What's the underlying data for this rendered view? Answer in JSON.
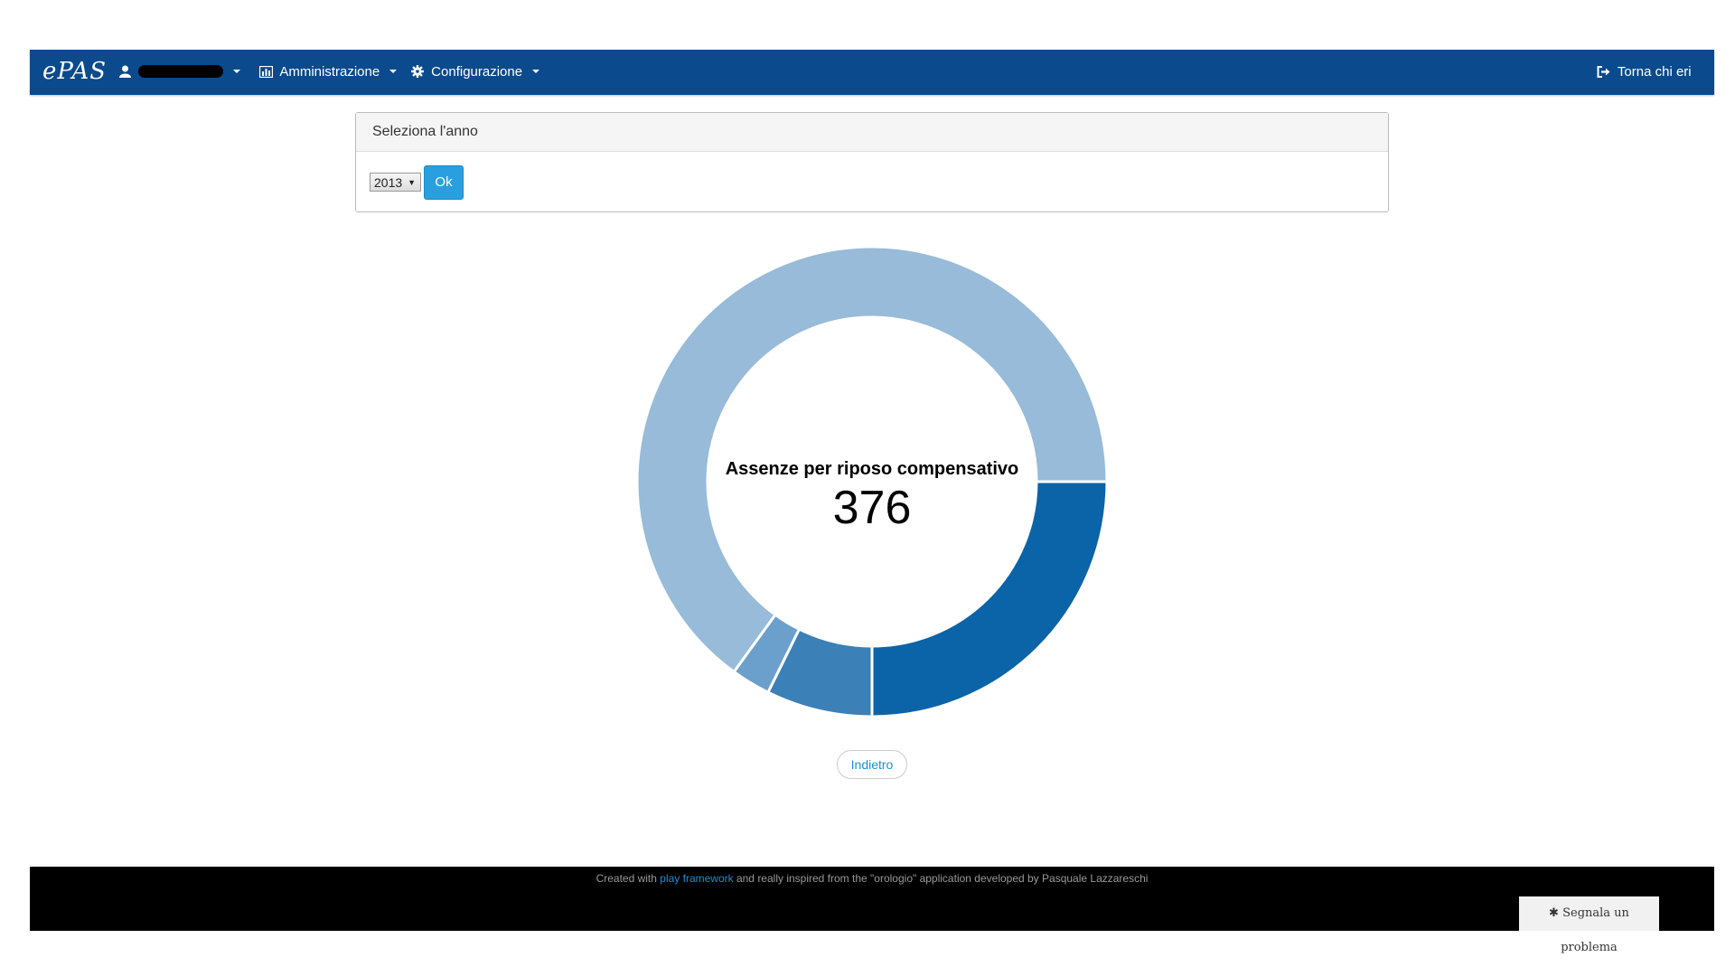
{
  "navbar": {
    "brand": "ePAS",
    "user_menu": {
      "icon": "user-icon",
      "label_redacted": true
    },
    "menus": [
      {
        "label": "Amministrazione",
        "icon": "bar-chart-icon"
      },
      {
        "label": "Configurazione",
        "icon": "gear-icon"
      }
    ],
    "right_link": {
      "label": "Torna chi eri",
      "icon": "sign-out-icon"
    },
    "color": "#0b4a8c"
  },
  "year_panel": {
    "heading": "Seleziona l'anno",
    "selected_year": "2013",
    "ok_label": "Ok"
  },
  "chart_data": {
    "type": "pie",
    "donut": true,
    "title": "Assenze per riposo compensativo",
    "total_label": "376",
    "slices": [
      {
        "fraction": 0.25,
        "color": "#0b63a8"
      },
      {
        "fraction": 0.073,
        "color": "#3b80b7"
      },
      {
        "fraction": 0.027,
        "color": "#6b9fcc"
      },
      {
        "fraction": 0.65,
        "color": "#97bbd8"
      }
    ]
  },
  "back_button": {
    "label": "Indietro"
  },
  "footer": {
    "text_before": "Created with ",
    "link": "play framework",
    "text_after": " and really inspired from the \"orologio\" application developed by Pasquale Lazzareschi"
  },
  "report_button": {
    "label": "Segnala un problema",
    "icon": "bug-icon"
  }
}
